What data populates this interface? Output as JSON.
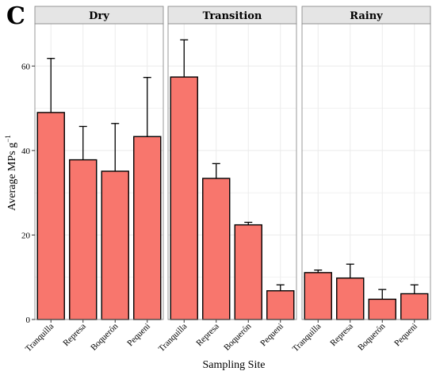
{
  "panel_label": "C",
  "chart_data": {
    "type": "bar",
    "xlabel": "Sampling Site",
    "ylabel": "Average MPs g",
    "ylabel_superscript": "−1",
    "ylim": [
      0,
      70
    ],
    "yticks": [
      0,
      20,
      40,
      60
    ],
    "grid": true,
    "colors": {
      "bar": "#f8766d",
      "bar_stroke": "#000000",
      "strip_bg": "#e5e5e5",
      "grid": "#ebebeb"
    },
    "facets": [
      {
        "name": "Dry",
        "categories": [
          "Tranquilla",
          "Represa",
          "Boquerón",
          "Pequeni"
        ],
        "values": [
          49,
          37.8,
          35.1,
          43.3
        ],
        "errors": [
          12.8,
          7.9,
          11.3,
          14
        ]
      },
      {
        "name": "Transition",
        "categories": [
          "Tranquilla",
          "Represa",
          "Boquerón",
          "Pequeni"
        ],
        "values": [
          57.4,
          33.4,
          22.4,
          6.8
        ],
        "errors": [
          8.8,
          3.5,
          0.6,
          1.4
        ]
      },
      {
        "name": "Rainy",
        "categories": [
          "Tranquilla",
          "Represa",
          "Boquerón",
          "Pequeni"
        ],
        "values": [
          11.1,
          9.8,
          4.8,
          6.1
        ],
        "errors": [
          0.6,
          3.3,
          2.3,
          2.1
        ]
      }
    ]
  }
}
